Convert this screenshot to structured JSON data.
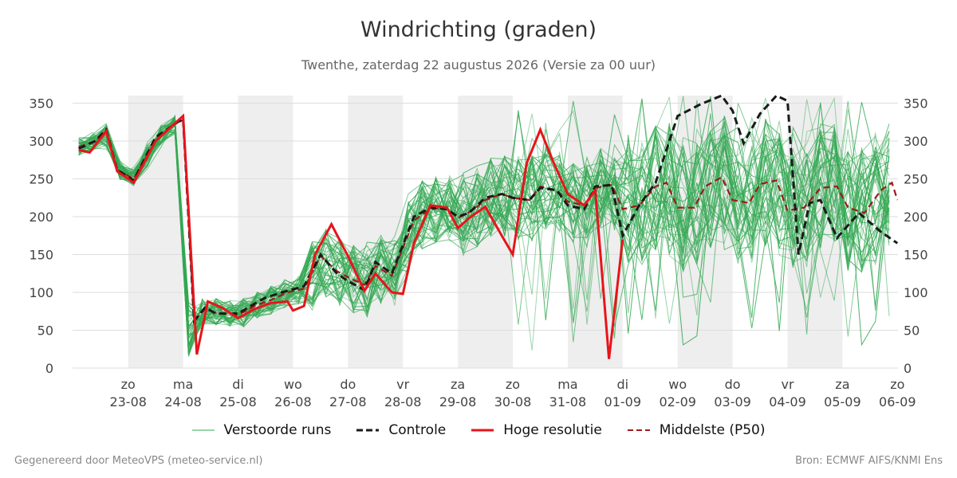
{
  "page": {
    "title": "Windrichting (graden)",
    "subtitle": "Twenthe, zaterdag 22 augustus 2026 (Versie za 00 uur)",
    "footer_left": "Gegenereerd door MeteoVPS (meteo-service.nl)",
    "footer_right": "Bron: ECMWF AIFS/KNMI Ens"
  },
  "legend": [
    {
      "key": "ensemble",
      "label": "Verstoorde runs",
      "color": "#34a853",
      "style": "thin-solid"
    },
    {
      "key": "control",
      "label": "Controle",
      "color": "#1a1a1a",
      "style": "dashed"
    },
    {
      "key": "hires",
      "label": "Hoge resolutie",
      "color": "#e8141b",
      "style": "solid"
    },
    {
      "key": "median",
      "label": "Middelste (P50)",
      "color": "#9e1a1a",
      "style": "dashed"
    }
  ],
  "chart_data": {
    "type": "line",
    "y_ticks": [
      0,
      50,
      100,
      150,
      200,
      250,
      300,
      350
    ],
    "ylim": [
      0,
      360
    ],
    "grid": true,
    "x_unit": "days since 22-08 00 uur",
    "xlim": [
      0,
      15
    ],
    "x_ticks": [
      {
        "day": "zo",
        "date": "23-08",
        "x": 1
      },
      {
        "day": "ma",
        "date": "24-08",
        "x": 2
      },
      {
        "day": "di",
        "date": "25-08",
        "x": 3
      },
      {
        "day": "wo",
        "date": "26-08",
        "x": 4
      },
      {
        "day": "do",
        "date": "27-08",
        "x": 5
      },
      {
        "day": "vr",
        "date": "28-08",
        "x": 6
      },
      {
        "day": "za",
        "date": "29-08",
        "x": 7
      },
      {
        "day": "zo",
        "date": "30-08",
        "x": 8
      },
      {
        "day": "ma",
        "date": "31-08",
        "x": 9
      },
      {
        "day": "di",
        "date": "01-09",
        "x": 10
      },
      {
        "day": "wo",
        "date": "02-09",
        "x": 11
      },
      {
        "day": "do",
        "date": "03-09",
        "x": 12
      },
      {
        "day": "vr",
        "date": "04-09",
        "x": 13
      },
      {
        "day": "za",
        "date": "05-09",
        "x": 14
      },
      {
        "day": "zo",
        "date": "06-09",
        "x": 15
      }
    ],
    "shaded_periods": [
      [
        1,
        2
      ],
      [
        3,
        4
      ],
      [
        5,
        6
      ],
      [
        7,
        8
      ],
      [
        9,
        10
      ],
      [
        11,
        12
      ],
      [
        13,
        14
      ]
    ],
    "series": [
      {
        "name": "Controle",
        "points": [
          [
            0.1,
            290
          ],
          [
            0.4,
            300
          ],
          [
            0.6,
            315
          ],
          [
            0.8,
            262
          ],
          [
            1.1,
            248
          ],
          [
            1.5,
            305
          ],
          [
            1.8,
            320
          ],
          [
            2.0,
            330
          ],
          [
            2.2,
            62
          ],
          [
            2.4,
            80
          ],
          [
            2.6,
            72
          ],
          [
            3.0,
            72
          ],
          [
            3.3,
            85
          ],
          [
            3.5,
            93
          ],
          [
            3.8,
            100
          ],
          [
            4.2,
            108
          ],
          [
            4.5,
            150
          ],
          [
            4.8,
            125
          ],
          [
            5.0,
            115
          ],
          [
            5.3,
            103
          ],
          [
            5.5,
            140
          ],
          [
            5.8,
            125
          ],
          [
            6.2,
            200
          ],
          [
            6.5,
            212
          ],
          [
            6.8,
            210
          ],
          [
            7.0,
            200
          ],
          [
            7.2,
            205
          ],
          [
            7.5,
            225
          ],
          [
            7.8,
            230
          ],
          [
            8.0,
            225
          ],
          [
            8.3,
            222
          ],
          [
            8.5,
            238
          ],
          [
            8.8,
            235
          ],
          [
            9.0,
            215
          ],
          [
            9.3,
            210
          ],
          [
            9.5,
            240
          ],
          [
            9.8,
            242
          ],
          [
            10.0,
            175
          ],
          [
            10.3,
            215
          ],
          [
            10.6,
            245
          ],
          [
            11.0,
            333
          ],
          [
            11.4,
            348
          ],
          [
            11.8,
            360
          ],
          [
            12.0,
            340
          ],
          [
            12.2,
            297
          ],
          [
            12.5,
            336
          ],
          [
            12.8,
            360
          ],
          [
            13.0,
            353
          ],
          [
            13.2,
            150
          ],
          [
            13.4,
            218
          ],
          [
            13.6,
            222
          ],
          [
            13.9,
            172
          ],
          [
            14.3,
            205
          ],
          [
            14.7,
            180
          ],
          [
            15.0,
            165
          ]
        ]
      },
      {
        "name": "Hoge resolutie",
        "points": [
          [
            0.1,
            288
          ],
          [
            0.3,
            285
          ],
          [
            0.6,
            313
          ],
          [
            0.8,
            260
          ],
          [
            1.1,
            245
          ],
          [
            1.5,
            300
          ],
          [
            1.8,
            320
          ],
          [
            2.0,
            333
          ],
          [
            2.25,
            18
          ],
          [
            2.45,
            88
          ],
          [
            2.7,
            80
          ],
          [
            3.0,
            66
          ],
          [
            3.3,
            78
          ],
          [
            3.6,
            86
          ],
          [
            3.9,
            88
          ],
          [
            4.0,
            76
          ],
          [
            4.2,
            82
          ],
          [
            4.4,
            150
          ],
          [
            4.7,
            190
          ],
          [
            5.0,
            148
          ],
          [
            5.3,
            102
          ],
          [
            5.5,
            125
          ],
          [
            5.8,
            100
          ],
          [
            6.0,
            98
          ],
          [
            6.2,
            165
          ],
          [
            6.5,
            215
          ],
          [
            6.8,
            212
          ],
          [
            7.0,
            185
          ],
          [
            7.2,
            198
          ],
          [
            7.5,
            213
          ],
          [
            7.8,
            175
          ],
          [
            8.0,
            150
          ],
          [
            8.25,
            270
          ],
          [
            8.5,
            315
          ],
          [
            8.75,
            270
          ],
          [
            9.0,
            230
          ],
          [
            9.3,
            215
          ],
          [
            9.5,
            235
          ],
          [
            9.75,
            12
          ],
          [
            10.0,
            170
          ]
        ]
      },
      {
        "name": "Middelste (P50)",
        "points": [
          [
            0.1,
            292
          ],
          [
            0.4,
            300
          ],
          [
            0.6,
            313
          ],
          [
            0.8,
            262
          ],
          [
            1.1,
            250
          ],
          [
            1.5,
            300
          ],
          [
            1.8,
            320
          ],
          [
            2.0,
            328
          ],
          [
            2.2,
            62
          ],
          [
            2.4,
            78
          ],
          [
            2.6,
            73
          ],
          [
            3.0,
            70
          ],
          [
            3.3,
            82
          ],
          [
            3.6,
            90
          ],
          [
            3.9,
            100
          ],
          [
            4.2,
            105
          ],
          [
            4.5,
            148
          ],
          [
            4.8,
            128
          ],
          [
            5.0,
            120
          ],
          [
            5.3,
            110
          ],
          [
            5.5,
            135
          ],
          [
            5.8,
            122
          ],
          [
            6.2,
            195
          ],
          [
            6.5,
            210
          ],
          [
            6.8,
            212
          ],
          [
            7.0,
            198
          ],
          [
            7.3,
            210
          ],
          [
            7.5,
            222
          ],
          [
            7.8,
            230
          ],
          [
            8.0,
            225
          ],
          [
            8.3,
            222
          ],
          [
            8.5,
            240
          ],
          [
            8.8,
            235
          ],
          [
            9.0,
            220
          ],
          [
            9.3,
            215
          ],
          [
            9.5,
            238
          ],
          [
            9.8,
            242
          ],
          [
            10.0,
            210
          ],
          [
            10.3,
            215
          ],
          [
            10.6,
            240
          ],
          [
            10.8,
            245
          ],
          [
            11.0,
            212
          ],
          [
            11.3,
            212
          ],
          [
            11.5,
            240
          ],
          [
            11.8,
            252
          ],
          [
            12.0,
            222
          ],
          [
            12.3,
            218
          ],
          [
            12.5,
            243
          ],
          [
            12.8,
            248
          ],
          [
            13.0,
            208
          ],
          [
            13.3,
            212
          ],
          [
            13.6,
            238
          ],
          [
            13.9,
            240
          ],
          [
            14.1,
            212
          ],
          [
            14.4,
            205
          ],
          [
            14.7,
            235
          ],
          [
            14.9,
            245
          ],
          [
            15.0,
            222
          ]
        ]
      }
    ],
    "ensemble_members": 50
  }
}
